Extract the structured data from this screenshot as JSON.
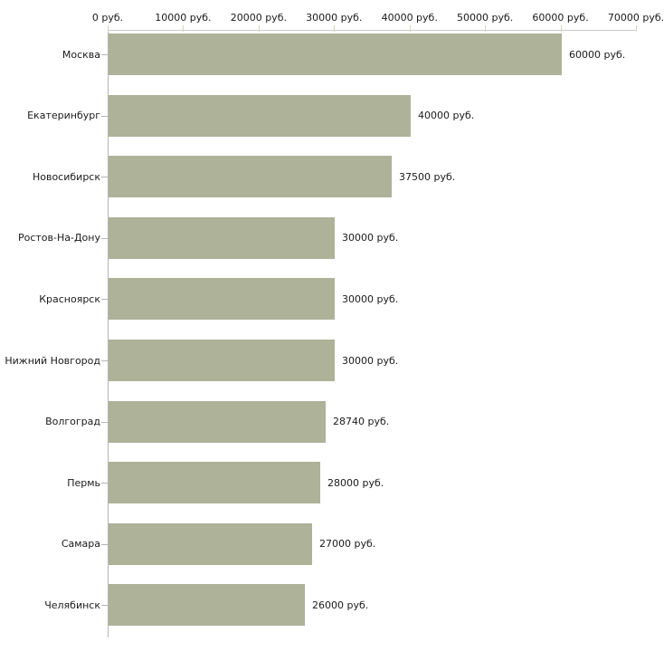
{
  "chart": {
    "colors": {
      "bar": "#adb299",
      "axis_line": "#c9c9c9",
      "y_axis_line": "#b5b5b5",
      "tick": "#d9d5bc",
      "text": "#1a1a1a",
      "background": "#ffffff"
    }
  },
  "chart_data": {
    "type": "bar",
    "orientation": "horizontal",
    "title": "",
    "xlabel": "",
    "ylabel": "",
    "categories": [
      "Москва",
      "Екатеринбург",
      "Новосибирск",
      "Ростов-На-Дону",
      "Красноярск",
      "Нижний Новгород",
      "Волгоград",
      "Пермь",
      "Самара",
      "Челябинск"
    ],
    "values": [
      60000,
      40000,
      37500,
      30000,
      30000,
      30000,
      28740,
      28000,
      27000,
      26000
    ],
    "bar_labels": [
      "60000 руб.",
      "40000 руб.",
      "37500 руб.",
      "30000 руб.",
      "30000 руб.",
      "30000 руб.",
      "28740 руб.",
      "28000 руб.",
      "27000 руб.",
      "26000 руб."
    ],
    "x_tick_labels": [
      "0 руб.",
      "10000 руб.",
      "20000 руб.",
      "30000 руб.",
      "40000 руб.",
      "50000 руб.",
      "60000 руб.",
      "70000 руб."
    ],
    "x_tick_values": [
      0,
      10000,
      20000,
      30000,
      40000,
      50000,
      60000,
      70000
    ],
    "xlim": [
      0,
      70000
    ],
    "grid": false,
    "legend": false,
    "axis_position": "top",
    "unit": "руб."
  }
}
